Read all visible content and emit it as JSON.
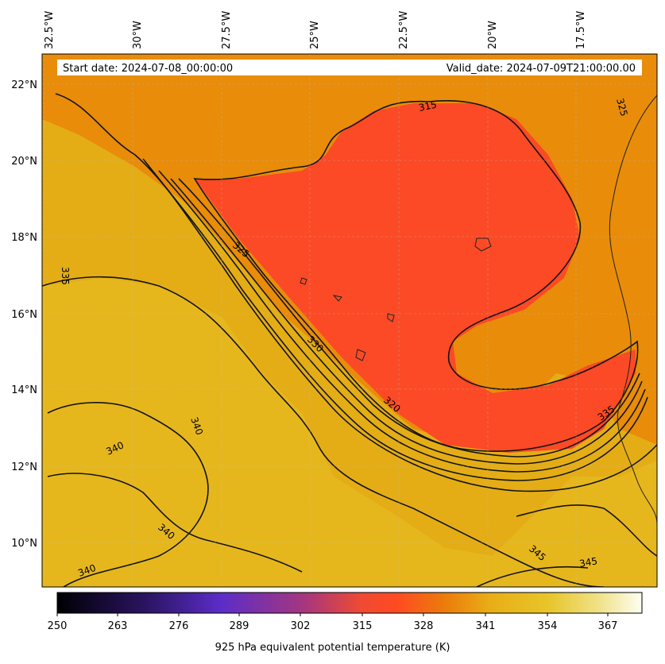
{
  "map": {
    "start_date": "Start date: 2024-07-08_00:00:00",
    "valid_date": "Valid_date: 2024-07-09T21:00:00.00",
    "lon_labels": [
      "32.5°W",
      "30°W",
      "27.5°W",
      "25°W",
      "22.5°W",
      "20°W",
      "17.5°W"
    ],
    "lat_labels": [
      "22°N",
      "20°N",
      "18°N",
      "16°N",
      "14°N",
      "12°N",
      "10°N"
    ],
    "contour_labels": [
      "315",
      "325",
      "325",
      "335",
      "330",
      "320",
      "335",
      "340",
      "340",
      "340",
      "340",
      "345",
      "345"
    ]
  },
  "colorbar": {
    "ticks": [
      "250",
      "263",
      "276",
      "289",
      "302",
      "315",
      "328",
      "341",
      "354",
      "367"
    ],
    "title": "925 hPa equivalent potential temperature (K)",
    "colors": [
      "#000004",
      "#3b1f8c",
      "#5b2dc8",
      "#b23a6e",
      "#e8473c",
      "#ff4a22",
      "#e88a07",
      "#e9b81a",
      "#eeda6a",
      "#fdfde8"
    ]
  }
}
